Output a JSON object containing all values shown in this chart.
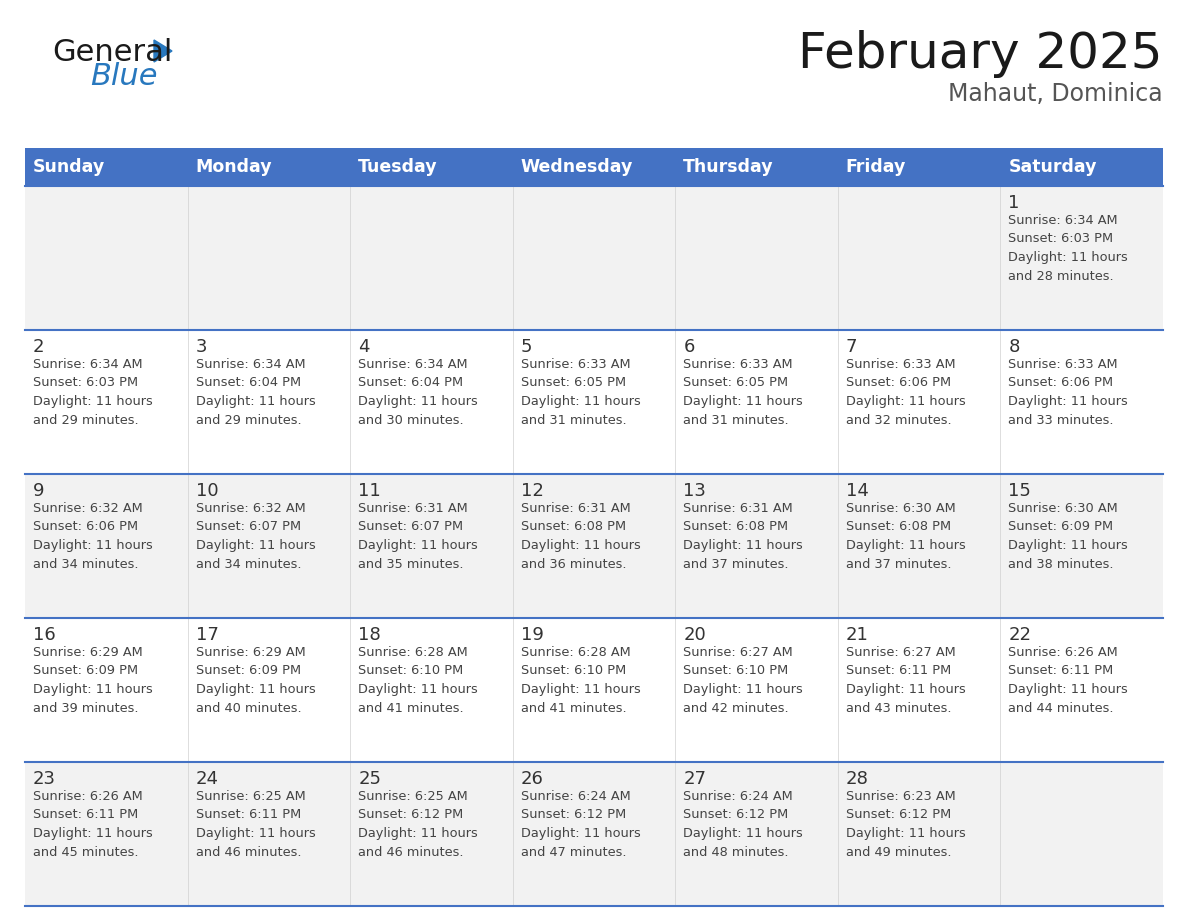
{
  "title": "February 2025",
  "subtitle": "Mahaut, Dominica",
  "header_bg": "#4472C4",
  "header_text_color": "#FFFFFF",
  "days_of_week": [
    "Sunday",
    "Monday",
    "Tuesday",
    "Wednesday",
    "Thursday",
    "Friday",
    "Saturday"
  ],
  "row_bg": [
    "#F2F2F2",
    "#FFFFFF",
    "#F2F2F2",
    "#FFFFFF",
    "#F2F2F2"
  ],
  "cell_border_color": "#4472C4",
  "day_number_color": "#333333",
  "info_text_color": "#444444",
  "logo_color_general": "#1a1a1a",
  "logo_color_blue": "#2878BE",
  "calendar": [
    [
      {
        "day": "",
        "info": ""
      },
      {
        "day": "",
        "info": ""
      },
      {
        "day": "",
        "info": ""
      },
      {
        "day": "",
        "info": ""
      },
      {
        "day": "",
        "info": ""
      },
      {
        "day": "",
        "info": ""
      },
      {
        "day": "1",
        "info": "Sunrise: 6:34 AM\nSunset: 6:03 PM\nDaylight: 11 hours\nand 28 minutes."
      }
    ],
    [
      {
        "day": "2",
        "info": "Sunrise: 6:34 AM\nSunset: 6:03 PM\nDaylight: 11 hours\nand 29 minutes."
      },
      {
        "day": "3",
        "info": "Sunrise: 6:34 AM\nSunset: 6:04 PM\nDaylight: 11 hours\nand 29 minutes."
      },
      {
        "day": "4",
        "info": "Sunrise: 6:34 AM\nSunset: 6:04 PM\nDaylight: 11 hours\nand 30 minutes."
      },
      {
        "day": "5",
        "info": "Sunrise: 6:33 AM\nSunset: 6:05 PM\nDaylight: 11 hours\nand 31 minutes."
      },
      {
        "day": "6",
        "info": "Sunrise: 6:33 AM\nSunset: 6:05 PM\nDaylight: 11 hours\nand 31 minutes."
      },
      {
        "day": "7",
        "info": "Sunrise: 6:33 AM\nSunset: 6:06 PM\nDaylight: 11 hours\nand 32 minutes."
      },
      {
        "day": "8",
        "info": "Sunrise: 6:33 AM\nSunset: 6:06 PM\nDaylight: 11 hours\nand 33 minutes."
      }
    ],
    [
      {
        "day": "9",
        "info": "Sunrise: 6:32 AM\nSunset: 6:06 PM\nDaylight: 11 hours\nand 34 minutes."
      },
      {
        "day": "10",
        "info": "Sunrise: 6:32 AM\nSunset: 6:07 PM\nDaylight: 11 hours\nand 34 minutes."
      },
      {
        "day": "11",
        "info": "Sunrise: 6:31 AM\nSunset: 6:07 PM\nDaylight: 11 hours\nand 35 minutes."
      },
      {
        "day": "12",
        "info": "Sunrise: 6:31 AM\nSunset: 6:08 PM\nDaylight: 11 hours\nand 36 minutes."
      },
      {
        "day": "13",
        "info": "Sunrise: 6:31 AM\nSunset: 6:08 PM\nDaylight: 11 hours\nand 37 minutes."
      },
      {
        "day": "14",
        "info": "Sunrise: 6:30 AM\nSunset: 6:08 PM\nDaylight: 11 hours\nand 37 minutes."
      },
      {
        "day": "15",
        "info": "Sunrise: 6:30 AM\nSunset: 6:09 PM\nDaylight: 11 hours\nand 38 minutes."
      }
    ],
    [
      {
        "day": "16",
        "info": "Sunrise: 6:29 AM\nSunset: 6:09 PM\nDaylight: 11 hours\nand 39 minutes."
      },
      {
        "day": "17",
        "info": "Sunrise: 6:29 AM\nSunset: 6:09 PM\nDaylight: 11 hours\nand 40 minutes."
      },
      {
        "day": "18",
        "info": "Sunrise: 6:28 AM\nSunset: 6:10 PM\nDaylight: 11 hours\nand 41 minutes."
      },
      {
        "day": "19",
        "info": "Sunrise: 6:28 AM\nSunset: 6:10 PM\nDaylight: 11 hours\nand 41 minutes."
      },
      {
        "day": "20",
        "info": "Sunrise: 6:27 AM\nSunset: 6:10 PM\nDaylight: 11 hours\nand 42 minutes."
      },
      {
        "day": "21",
        "info": "Sunrise: 6:27 AM\nSunset: 6:11 PM\nDaylight: 11 hours\nand 43 minutes."
      },
      {
        "day": "22",
        "info": "Sunrise: 6:26 AM\nSunset: 6:11 PM\nDaylight: 11 hours\nand 44 minutes."
      }
    ],
    [
      {
        "day": "23",
        "info": "Sunrise: 6:26 AM\nSunset: 6:11 PM\nDaylight: 11 hours\nand 45 minutes."
      },
      {
        "day": "24",
        "info": "Sunrise: 6:25 AM\nSunset: 6:11 PM\nDaylight: 11 hours\nand 46 minutes."
      },
      {
        "day": "25",
        "info": "Sunrise: 6:25 AM\nSunset: 6:12 PM\nDaylight: 11 hours\nand 46 minutes."
      },
      {
        "day": "26",
        "info": "Sunrise: 6:24 AM\nSunset: 6:12 PM\nDaylight: 11 hours\nand 47 minutes."
      },
      {
        "day": "27",
        "info": "Sunrise: 6:24 AM\nSunset: 6:12 PM\nDaylight: 11 hours\nand 48 minutes."
      },
      {
        "day": "28",
        "info": "Sunrise: 6:23 AM\nSunset: 6:12 PM\nDaylight: 11 hours\nand 49 minutes."
      },
      {
        "day": "",
        "info": ""
      }
    ]
  ]
}
